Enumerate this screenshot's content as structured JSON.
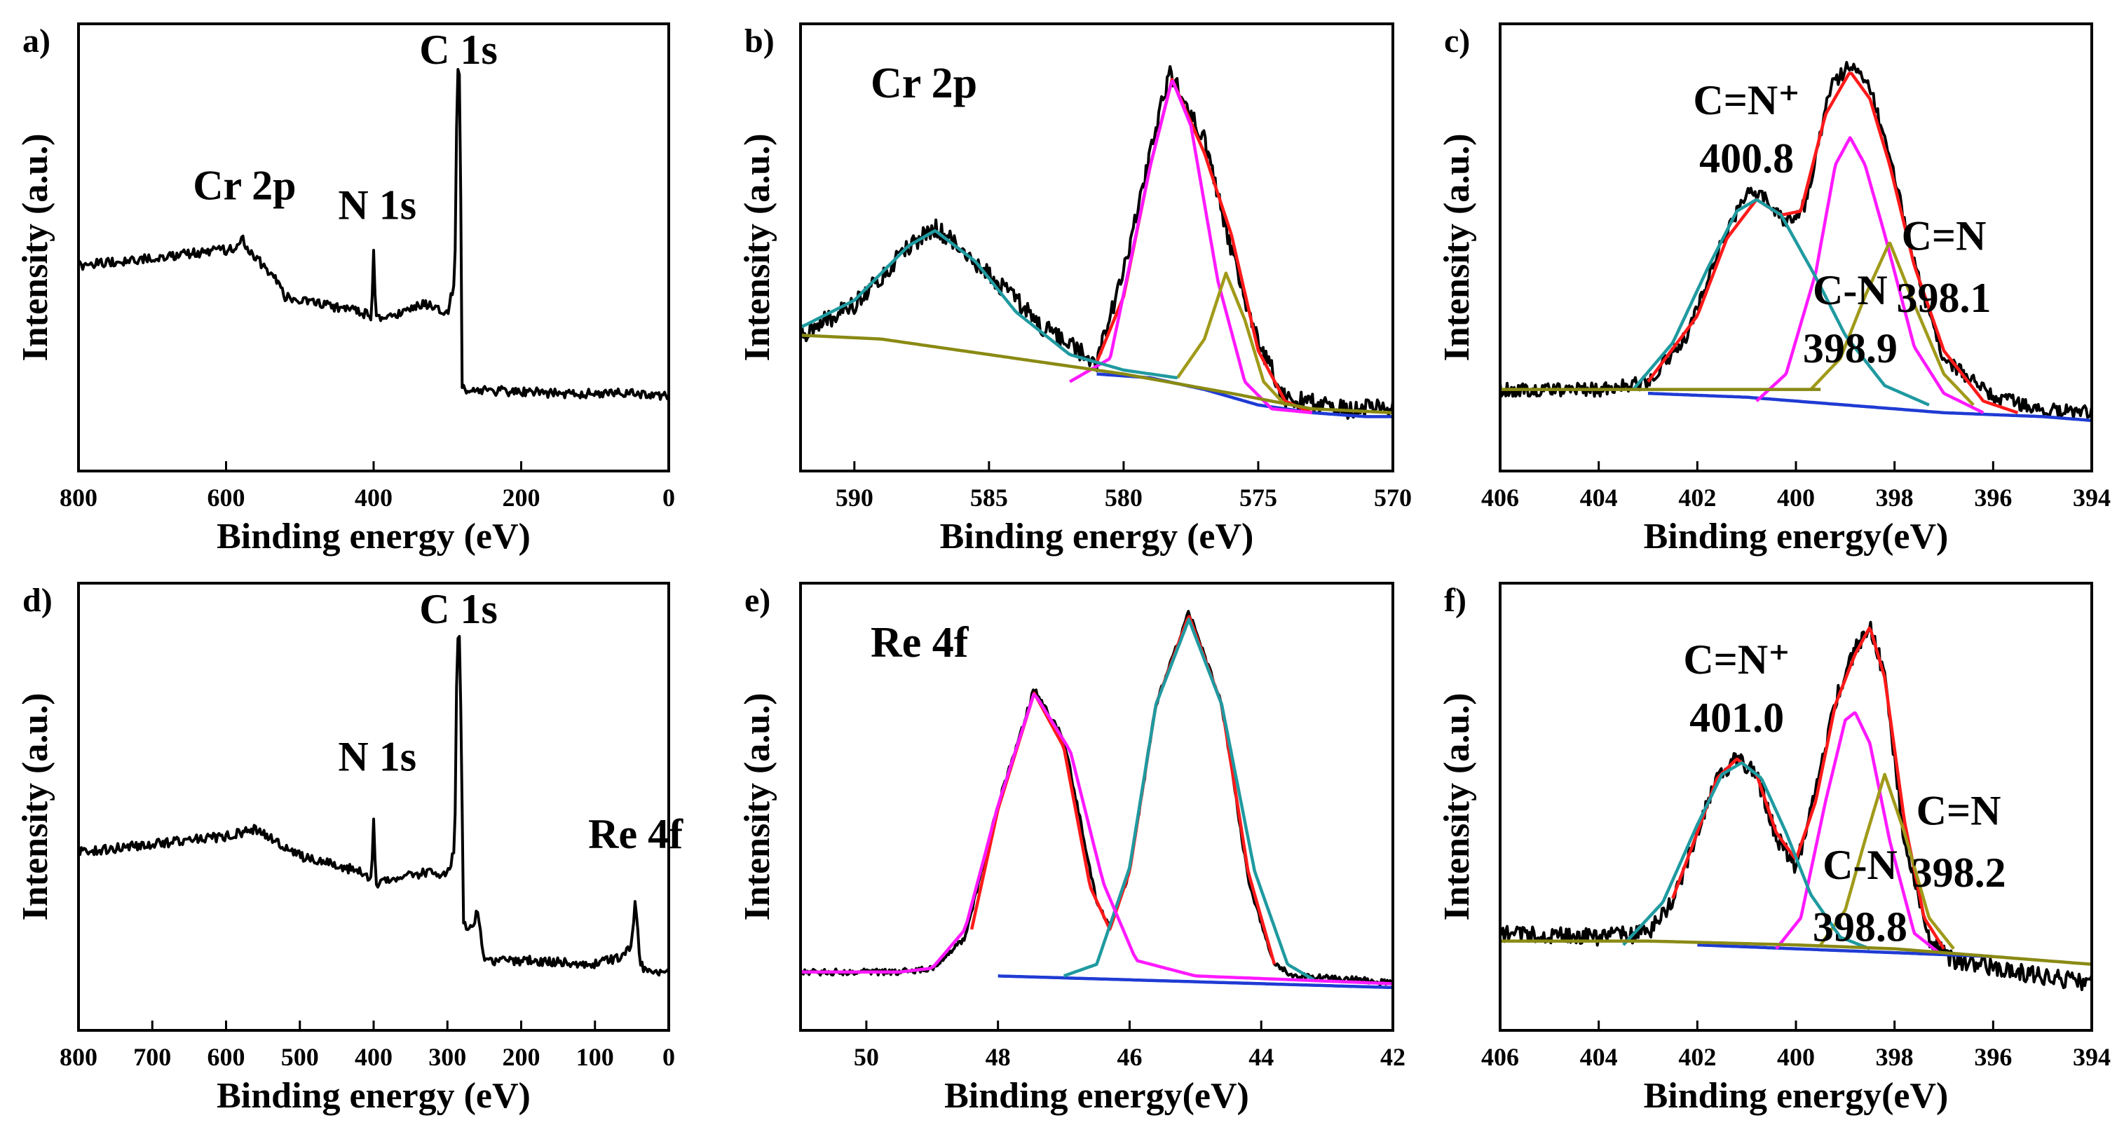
{
  "chart_data": [
    {
      "panel": "a)",
      "type": "line",
      "xlabel": "Binding energy (eV)",
      "ylabel": "Intensity (a.u.)",
      "xlim": [
        800,
        0
      ],
      "ylim": [
        0,
        100
      ],
      "xticks": [
        800,
        600,
        400,
        200,
        0
      ],
      "xtick_labels": [
        "800",
        "600",
        "400",
        "200",
        "0"
      ],
      "annotations": [
        {
          "text": "Cr 2p",
          "x": 575,
          "y": 61
        },
        {
          "text": "N 1s",
          "x": 395,
          "y": 56
        },
        {
          "text": "C 1s",
          "x": 285,
          "y": 96
        }
      ],
      "series": [
        {
          "name": "survey",
          "color": "#000000",
          "noise": 1.2,
          "x": [
            800,
            700,
            600,
            582,
            578,
            574,
            560,
            530,
            520,
            470,
            420,
            403,
            400,
            397,
            394,
            330,
            300,
            290,
            287,
            285,
            283,
            280,
            150,
            50,
            0
          ],
          "y": [
            44,
            46,
            48,
            49,
            52,
            48,
            46,
            40,
            36,
            34,
            32,
            31,
            47,
            31,
            30,
            34,
            32,
            40,
            90,
            96,
            90,
            12,
            11,
            11,
            10
          ]
        }
      ]
    },
    {
      "panel": "b)",
      "type": "line",
      "title": "Cr 2p",
      "xlabel": "Binding energy (eV)",
      "ylabel": "Intensity (a.u.)",
      "xlim": [
        592,
        570
      ],
      "ylim": [
        0,
        100
      ],
      "xticks": [
        590,
        585,
        580,
        575,
        570
      ],
      "xtick_labels": [
        "590",
        "585",
        "580",
        "575",
        "570"
      ],
      "series": [
        {
          "name": "raw data",
          "color": "#000000",
          "noise": 2.5,
          "x": [
            592,
            590,
            588,
            587,
            585,
            583,
            581,
            580,
            578.3,
            577,
            576,
            575,
            574,
            572,
            570
          ],
          "y": [
            26,
            34,
            49,
            54,
            42,
            28,
            19,
            42,
            94,
            76,
            48,
            24,
            10,
            7,
            7
          ]
        },
        {
          "name": "background",
          "color": "#1f3bd4",
          "x": [
            581,
            579,
            577,
            575,
            573,
            571,
            570
          ],
          "y": [
            16,
            15,
            12,
            8,
            6,
            5,
            5
          ]
        },
        {
          "name": "fit envelope",
          "color": "#ff1a1a",
          "x": [
            581,
            580,
            579,
            578.2,
            577,
            576,
            575,
            574,
            573
          ],
          "y": [
            19,
            36,
            70,
            92,
            73,
            52,
            22,
            9,
            6
          ]
        },
        {
          "name": "Cr 2p3/2 peak",
          "color": "#ff19ff",
          "x": [
            582,
            580.5,
            579,
            578.2,
            577.5,
            576.5,
            575.5,
            574.5,
            573
          ],
          "y": [
            14,
            20,
            70,
            92,
            80,
            40,
            14,
            7,
            6
          ]
        },
        {
          "name": "Cr satellite peak",
          "color": "#a09a1a",
          "x": [
            578,
            577,
            576.2,
            575.5,
            574.8,
            574
          ],
          "y": [
            15,
            25,
            42,
            30,
            14,
            8
          ]
        },
        {
          "name": "Cr 2p1/2 peak",
          "color": "#1f9aa0",
          "x": [
            592,
            590,
            588,
            587,
            585.5,
            584,
            582,
            580,
            578
          ],
          "y": [
            28,
            35,
            49,
            53,
            45,
            32,
            21,
            17,
            15
          ]
        },
        {
          "name": "baseline",
          "color": "#8a8a14",
          "x": [
            592,
            589,
            586,
            583,
            580,
            576,
            573,
            570
          ],
          "y": [
            26,
            25,
            22,
            19,
            16,
            11,
            7,
            6
          ]
        }
      ]
    },
    {
      "panel": "c)",
      "type": "line",
      "xlabel": "Binding energy(eV)",
      "ylabel": "Intensity (a.u.)",
      "xlim": [
        406,
        394
      ],
      "ylim": [
        0,
        100
      ],
      "xticks": [
        406,
        404,
        402,
        400,
        398,
        396,
        394
      ],
      "xtick_labels": [
        "406",
        "404",
        "402",
        "400",
        "398",
        "396",
        "394"
      ],
      "annotations": [
        {
          "text": "C=N⁺",
          "x": 401.0,
          "y": 83
        },
        {
          "text": "400.8",
          "x": 401.0,
          "y": 68
        },
        {
          "text": "C-N",
          "x": 398.9,
          "y": 34
        },
        {
          "text": "398.9",
          "x": 398.9,
          "y": 19
        },
        {
          "text": "C=N",
          "x": 397.0,
          "y": 48
        },
        {
          "text": "398.1",
          "x": 397.0,
          "y": 32
        }
      ],
      "series": [
        {
          "name": "raw data",
          "color": "#000000",
          "noise": 1.8,
          "x": [
            406,
            404,
            403,
            402.2,
            401.5,
            401,
            400.6,
            400.2,
            399.8,
            399.3,
            398.9,
            398.5,
            398.1,
            397.5,
            397,
            396,
            395,
            394
          ],
          "y": [
            12,
            12,
            14,
            26,
            50,
            63,
            61,
            55,
            60,
            90,
            96,
            90,
            72,
            40,
            20,
            10,
            7,
            6
          ]
        },
        {
          "name": "background",
          "color": "#1f3bd4",
          "x": [
            403,
            401,
            399,
            397,
            395,
            394
          ],
          "y": [
            11,
            10,
            8,
            6,
            5,
            4
          ]
        },
        {
          "name": "fit envelope",
          "color": "#ff1a1a",
          "x": [
            403,
            402,
            401.4,
            400.8,
            400.3,
            399.9,
            399.4,
            398.9,
            398.5,
            398.1,
            397.6,
            397,
            396.2,
            395.5
          ],
          "y": [
            14,
            31,
            51,
            61,
            57,
            58,
            83,
            94,
            87,
            70,
            44,
            22,
            9,
            6
          ]
        },
        {
          "name": "C-N peak",
          "color": "#ff19ff",
          "x": [
            400.8,
            400.2,
            399.6,
            399.2,
            398.9,
            398.6,
            398.2,
            397.6,
            397,
            396.2
          ],
          "y": [
            9,
            16,
            42,
            70,
            77,
            70,
            52,
            23,
            11,
            6
          ]
        },
        {
          "name": "C=N peak",
          "color": "#a09a1a",
          "x": [
            399.7,
            399.1,
            398.6,
            398.1,
            397.6,
            397,
            396.4
          ],
          "y": [
            12,
            20,
            36,
            50,
            34,
            16,
            8
          ]
        },
        {
          "name": "C=N+ peak",
          "color": "#1f9aa0",
          "x": [
            403.3,
            402.5,
            401.8,
            401.2,
            400.8,
            400.3,
            399.6,
            399,
            398.2,
            397.3
          ],
          "y": [
            12,
            24,
            43,
            58,
            61,
            57,
            41,
            26,
            13,
            8
          ]
        },
        {
          "name": "baseline",
          "color": "#8a8a14",
          "x": [
            406,
            403,
            401,
            400,
            399.5
          ],
          "y": [
            12,
            12,
            12,
            12,
            12
          ]
        }
      ]
    },
    {
      "panel": "d)",
      "type": "line",
      "xlabel": "Binding energy (eV)",
      "ylabel": "Intensity (a.u.)",
      "xlim": [
        800,
        0
      ],
      "ylim": [
        0,
        100
      ],
      "xticks": [
        800,
        700,
        600,
        500,
        400,
        300,
        200,
        100,
        0
      ],
      "xtick_labels": [
        "800",
        "700",
        "600",
        "500",
        "400",
        "300",
        "200",
        "100",
        "0"
      ],
      "annotations": [
        {
          "text": "N 1s",
          "x": 395,
          "y": 58
        },
        {
          "text": "C 1s",
          "x": 285,
          "y": 96
        },
        {
          "text": "Re 4f",
          "x": 45,
          "y": 38
        }
      ],
      "series": [
        {
          "name": "survey",
          "color": "#000000",
          "noise": 1.2,
          "x": [
            800,
            700,
            600,
            560,
            500,
            420,
            403,
            400,
            397,
            394,
            320,
            300,
            290,
            287,
            285,
            283,
            278,
            265,
            260,
            250,
            200,
            100,
            60,
            50,
            45,
            40,
            35,
            0
          ],
          "y": [
            37,
            39,
            41,
            43,
            36,
            32,
            30,
            46,
            30,
            29,
            32,
            31,
            38,
            90,
            95,
            90,
            18,
            17,
            22,
            9,
            9,
            8,
            10,
            14,
            25,
            10,
            7,
            6
          ]
        }
      ]
    },
    {
      "panel": "e)",
      "type": "line",
      "title": "Re 4f",
      "xlabel": "Binding energy(eV)",
      "ylabel": "Intensity (a.u.)",
      "xlim": [
        51,
        42
      ],
      "ylim": [
        0,
        100
      ],
      "xticks": [
        50,
        48,
        46,
        44,
        42
      ],
      "xtick_labels": [
        "50",
        "48",
        "46",
        "44",
        "42"
      ],
      "series": [
        {
          "name": "raw data",
          "color": "#000000",
          "noise": 0.8,
          "x": [
            51,
            49.5,
            49,
            48.5,
            48,
            47.45,
            47,
            46.5,
            46.3,
            46,
            45.6,
            45.1,
            44.6,
            44.2,
            43.8,
            43.5,
            42.5,
            42
          ],
          "y": [
            6,
            6,
            7,
            15,
            49,
            79,
            66,
            24,
            18,
            32,
            75,
            99,
            75,
            30,
            8,
            5,
            4,
            3
          ]
        },
        {
          "name": "background",
          "color": "#1f3bd4",
          "x": [
            48,
            46,
            44,
            42
          ],
          "y": [
            5,
            4,
            3,
            2
          ]
        },
        {
          "name": "fit envelope",
          "color": "#ff1a1a",
          "x": [
            48.4,
            48,
            47.45,
            47,
            46.6,
            46.3,
            46,
            45.6,
            45.1,
            44.6,
            44.2,
            43.8
          ],
          "y": [
            17,
            48,
            78,
            64,
            28,
            17,
            32,
            75,
            98,
            75,
            32,
            8
          ]
        },
        {
          "name": "Re 4f7/2 peak",
          "color": "#1f9aa0",
          "x": [
            47,
            46.5,
            46,
            45.6,
            45.1,
            44.6,
            44.1,
            43.6,
            43.2
          ],
          "y": [
            5,
            8,
            33,
            75,
            97,
            75,
            32,
            8,
            4
          ]
        },
        {
          "name": "Re 4f5/2 peak",
          "color": "#ff19ff",
          "x": [
            51,
            49.5,
            49,
            48.5,
            48,
            47.45,
            46.9,
            46.4,
            45.9,
            45,
            43.5,
            42
          ],
          "y": [
            6,
            6,
            7,
            17,
            49,
            78,
            63,
            29,
            9,
            5,
            4,
            3
          ]
        }
      ]
    },
    {
      "panel": "f)",
      "type": "line",
      "xlabel": "Binding energy(eV)",
      "ylabel": "Intensity (a.u.)",
      "xlim": [
        406,
        394
      ],
      "ylim": [
        0,
        100
      ],
      "xticks": [
        406,
        404,
        402,
        400,
        398,
        396,
        394
      ],
      "xtick_labels": [
        "406",
        "404",
        "402",
        "400",
        "398",
        "396",
        "394"
      ],
      "annotations": [
        {
          "text": "C=N⁺",
          "x": 401.2,
          "y": 83
        },
        {
          "text": "401.0",
          "x": 401.2,
          "y": 68
        },
        {
          "text": "C-N",
          "x": 398.7,
          "y": 30
        },
        {
          "text": "398.8",
          "x": 398.7,
          "y": 14
        },
        {
          "text": "C=N",
          "x": 396.7,
          "y": 44
        },
        {
          "text": "398.2",
          "x": 396.7,
          "y": 28
        }
      ],
      "series": [
        {
          "name": "raw data",
          "color": "#000000",
          "noise": 2.2,
          "x": [
            406,
            404,
            403,
            402.5,
            402,
            401.6,
            401.2,
            400.8,
            400.4,
            400,
            399.6,
            399.2,
            398.8,
            398.5,
            398.2,
            397.8,
            397.3,
            396.8,
            396,
            395,
            394
          ],
          "y": [
            16,
            15,
            16,
            24,
            42,
            56,
            61,
            57,
            41,
            33,
            52,
            76,
            89,
            96,
            82,
            40,
            14,
            9,
            7,
            5,
            3
          ]
        },
        {
          "name": "background",
          "color": "#1f3bd4",
          "x": [
            402,
            400,
            398,
            396
          ],
          "y": [
            13,
            12,
            11,
            10
          ]
        },
        {
          "name": "fit envelope",
          "color": "#ff1a1a",
          "x": [
            402.5,
            402,
            401.6,
            401.2,
            400.8,
            400.4,
            400,
            399.6,
            399.2,
            398.8,
            398.5,
            398.2,
            397.8,
            397.4,
            397
          ],
          "y": [
            25,
            42,
            56,
            61,
            57,
            42,
            35,
            50,
            75,
            88,
            95,
            82,
            45,
            20,
            12
          ]
        },
        {
          "name": "C-N peak",
          "color": "#ff19ff",
          "x": [
            400.4,
            399.9,
            399.4,
            399,
            398.8,
            398.5,
            398.1,
            397.6,
            397.1
          ],
          "y": [
            12,
            20,
            50,
            71,
            73,
            65,
            40,
            16,
            11
          ]
        },
        {
          "name": "C=N peak",
          "color": "#a09a1a",
          "x": [
            399.5,
            399,
            398.6,
            398.2,
            397.8,
            397.3,
            396.8
          ],
          "y": [
            13,
            22,
            40,
            57,
            42,
            20,
            12
          ]
        },
        {
          "name": "C=N+ peak",
          "color": "#1f9aa0",
          "x": [
            403.5,
            402.7,
            402,
            401.5,
            401.1,
            400.7,
            400.2,
            399.7,
            399.1,
            398.5
          ],
          "y": [
            13,
            24,
            44,
            57,
            60,
            56,
            42,
            26,
            15,
            12
          ]
        },
        {
          "name": "baseline",
          "color": "#8a8a14",
          "x": [
            406,
            403,
            400,
            398,
            396,
            394
          ],
          "y": [
            14,
            14,
            13,
            12,
            10,
            8
          ]
        }
      ]
    }
  ]
}
